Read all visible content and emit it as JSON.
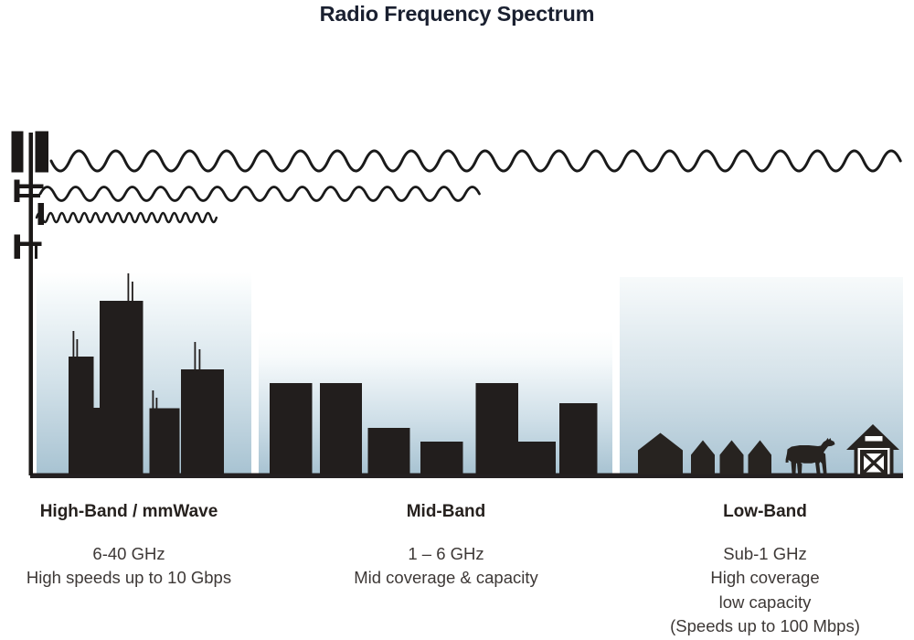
{
  "title": "Radio Frequency Spectrum",
  "bands": [
    {
      "heading": "High-Band / mmWave",
      "lines": [
        "6-40 GHz",
        "High speeds up to 10 Gbps"
      ]
    },
    {
      "heading": "Mid-Band",
      "lines": [
        "1 – 6 GHz",
        "Mid coverage & capacity"
      ]
    },
    {
      "heading": "Low-Band",
      "lines": [
        "Sub-1 GHz",
        "High coverage",
        "low capacity",
        "(Speeds up to 100 Mbps)"
      ]
    }
  ],
  "icons": {
    "tower": "cell-tower-icon",
    "waves": [
      "low-band-wave",
      "mid-band-wave",
      "high-band-wave"
    ],
    "high_band_scene": "city-skyline",
    "mid_band_scene": "town-skyline",
    "low_band_scene": [
      "house-icon",
      "cow-icon",
      "barn-icon"
    ]
  },
  "colors": {
    "silhouette": "#221e1d",
    "sky_top": "#ffffff",
    "sky_bottom": "#a8c3d2",
    "title_text": "#1a2030",
    "heading_text": "#26211e",
    "body_text": "#3d3836"
  }
}
